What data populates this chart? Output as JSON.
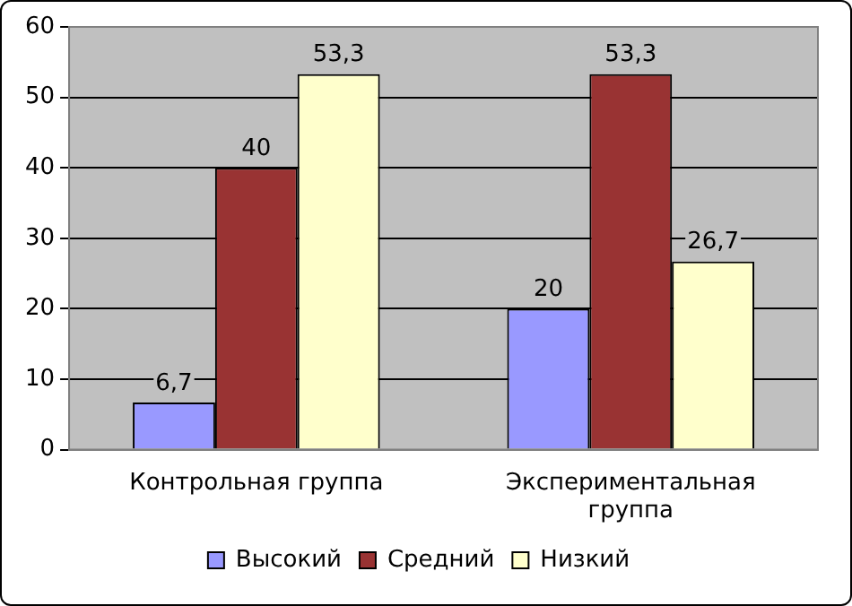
{
  "chart_data": {
    "type": "bar",
    "categories": [
      "Контрольная группа",
      "Экспериментальная группа"
    ],
    "series": [
      {
        "name": "Высокий",
        "color": "#9999ff",
        "values": [
          6.7,
          20
        ],
        "value_labels": [
          "6,7",
          "20"
        ]
      },
      {
        "name": "Средний",
        "color": "#993333",
        "values": [
          40,
          53.3
        ],
        "value_labels": [
          "40",
          "53,3"
        ]
      },
      {
        "name": "Низкий",
        "color": "#ffffcc",
        "values": [
          53.3,
          26.7
        ],
        "value_labels": [
          "53,3",
          "26,7"
        ]
      }
    ],
    "ylim": [
      0,
      60
    ],
    "yticks": [
      0,
      10,
      20,
      30,
      40,
      50,
      60
    ],
    "grid": "y",
    "legend": "bottom"
  }
}
